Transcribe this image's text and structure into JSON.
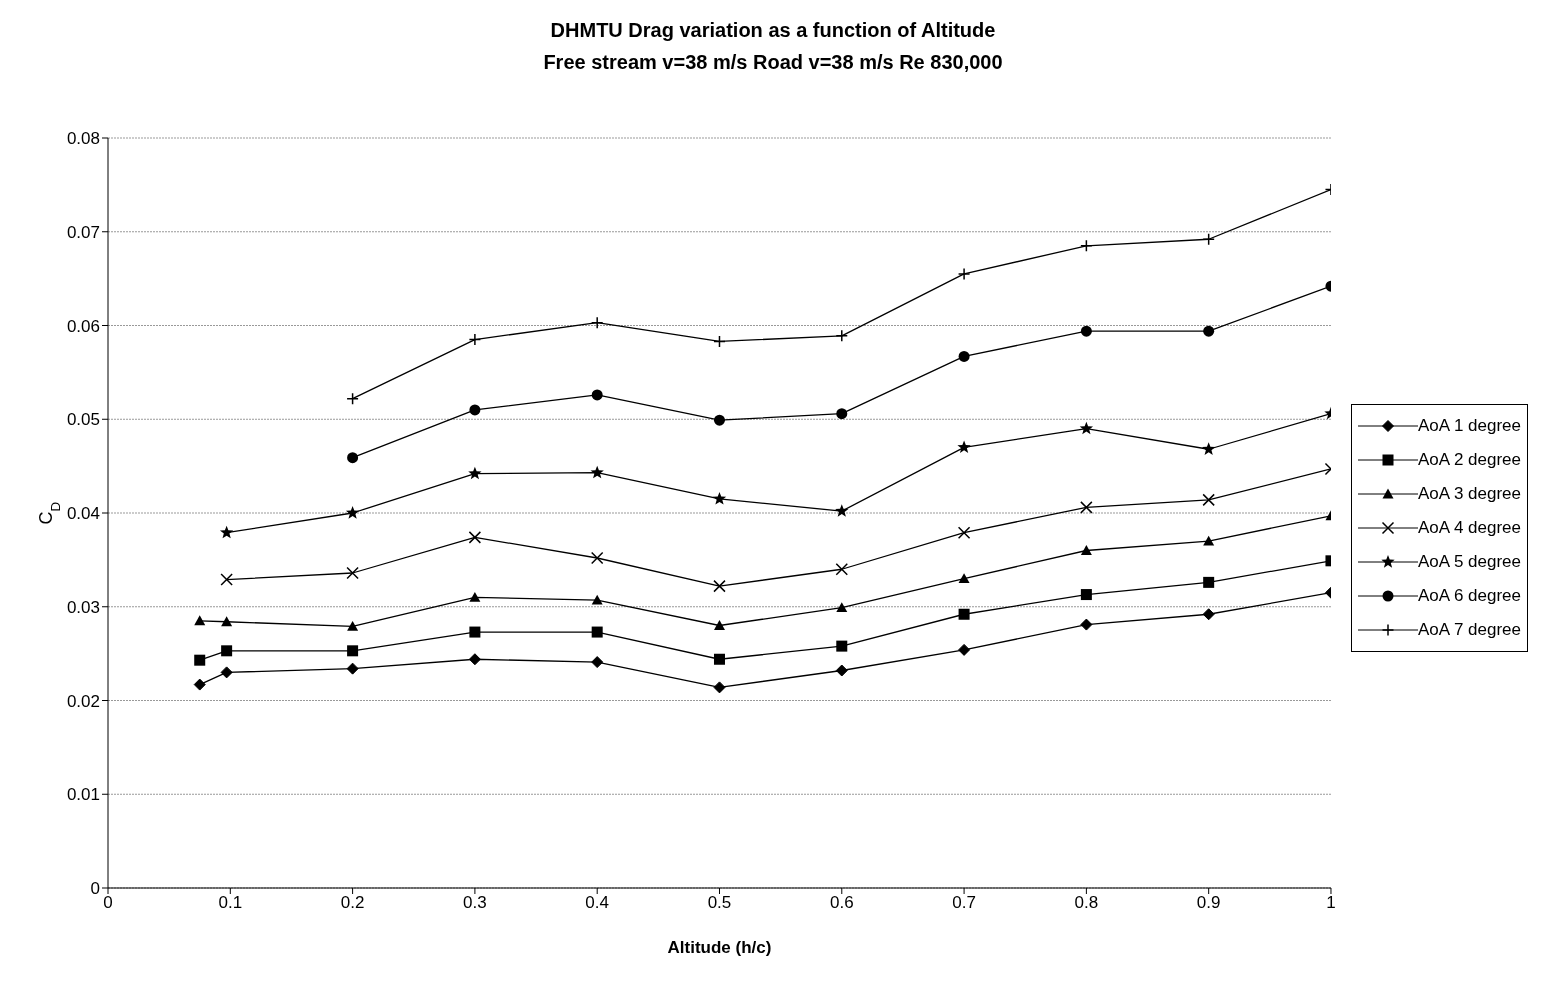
{
  "chart_data": {
    "type": "line",
    "title": "DHMTU Drag variation as a function of Altitude",
    "subtitle": "Free stream v=38 m/s Road v=38 m/s Re 830,000",
    "xlabel": "Altitude (h/c)",
    "ylabel": "C$_{D}$",
    "xlim": [
      0,
      1
    ],
    "xticks": [
      0,
      0.1,
      0.2,
      0.3,
      0.4,
      0.5,
      0.6,
      0.7,
      0.8,
      0.9,
      1
    ],
    "ylim": [
      0,
      0.08
    ],
    "yticks": [
      0,
      0.01,
      0.02,
      0.03,
      0.04,
      0.05,
      0.06,
      0.07,
      0.08
    ],
    "grid": "y",
    "legend": "right",
    "line_style": "solid",
    "series": [
      {
        "name": "AoA 1 degree",
        "color": "#000000",
        "marker": "diamond",
        "x": [
          0.075,
          0.097,
          0.2,
          0.3,
          0.4,
          0.5,
          0.6,
          0.7,
          0.8,
          0.9,
          1
        ],
        "values": [
          0.0217,
          0.023,
          0.0234,
          0.0244,
          0.0241,
          0.0214,
          0.0232,
          0.0254,
          0.0281,
          0.0292,
          0.0315
        ]
      },
      {
        "name": "AoA 2 degree",
        "color": "#000000",
        "marker": "square",
        "x": [
          0.075,
          0.097,
          0.2,
          0.3,
          0.4,
          0.5,
          0.6,
          0.7,
          0.8,
          0.9,
          1
        ],
        "values": [
          0.0243,
          0.0253,
          0.0253,
          0.0273,
          0.0273,
          0.0244,
          0.0258,
          0.0292,
          0.0313,
          0.0326,
          0.0349
        ]
      },
      {
        "name": "AoA 3 degree",
        "color": "#000000",
        "marker": "triangle",
        "x": [
          0.075,
          0.097,
          0.2,
          0.3,
          0.4,
          0.5,
          0.6,
          0.7,
          0.8,
          0.9,
          1
        ],
        "values": [
          0.0285,
          0.0284,
          0.0279,
          0.031,
          0.0307,
          0.028,
          0.0299,
          0.033,
          0.036,
          0.037,
          0.0397
        ]
      },
      {
        "name": "AoA 4 degree",
        "color": "#000000",
        "marker": "cross",
        "x": [
          0.097,
          0.2,
          0.3,
          0.4,
          0.5,
          0.6,
          0.7,
          0.8,
          0.9,
          1
        ],
        "values": [
          0.0329,
          0.0336,
          0.0374,
          0.0352,
          0.0322,
          0.034,
          0.0379,
          0.0406,
          0.0414,
          0.0447
        ]
      },
      {
        "name": "AoA 5 degree",
        "color": "#000000",
        "marker": "star",
        "x": [
          0.097,
          0.2,
          0.3,
          0.4,
          0.5,
          0.6,
          0.7,
          0.8,
          0.9,
          1
        ],
        "values": [
          0.0379,
          0.04,
          0.0442,
          0.0443,
          0.0415,
          0.0402,
          0.047,
          0.049,
          0.0468,
          0.0506
        ]
      },
      {
        "name": "AoA 6 degree",
        "color": "#000000",
        "marker": "circle",
        "x": [
          0.2,
          0.3,
          0.4,
          0.5,
          0.6,
          0.7,
          0.8,
          0.9,
          1
        ],
        "values": [
          0.0459,
          0.051,
          0.0526,
          0.0499,
          0.0506,
          0.0567,
          0.0594,
          0.0594,
          0.0642
        ]
      },
      {
        "name": "AoA 7 degree",
        "color": "#000000",
        "marker": "plus",
        "x": [
          0.2,
          0.3,
          0.4,
          0.5,
          0.6,
          0.7,
          0.8,
          0.9,
          1
        ],
        "values": [
          0.0522,
          0.0585,
          0.0603,
          0.0583,
          0.0589,
          0.0655,
          0.0685,
          0.0692,
          0.0745
        ]
      }
    ]
  }
}
